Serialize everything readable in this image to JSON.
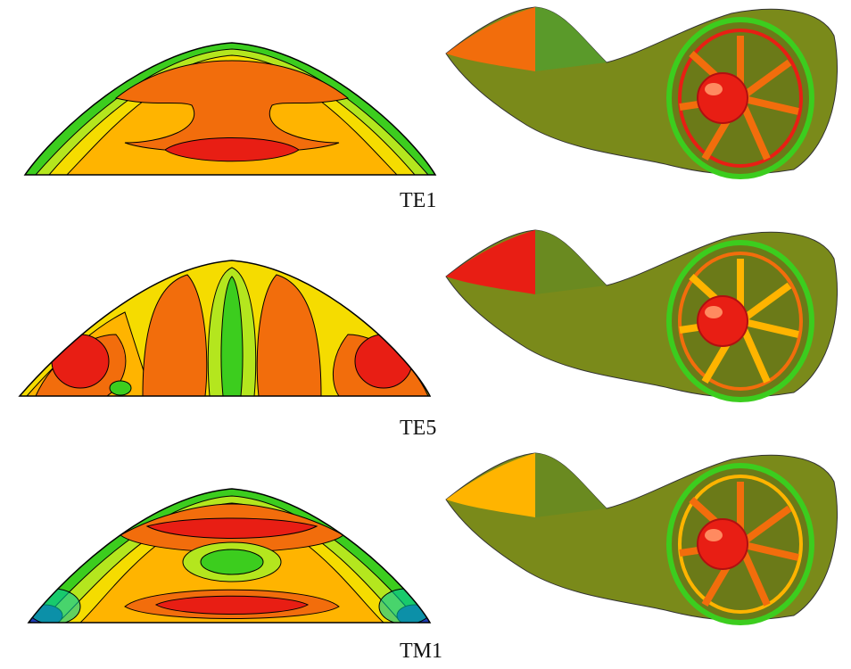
{
  "panels": [
    {
      "label": "TE1"
    },
    {
      "label": "TE5"
    },
    {
      "label": "TM1"
    }
  ],
  "colors": {
    "red": "#e81e14",
    "orange": "#f26d0c",
    "yellow_orange": "#ffb400",
    "yellow": "#f5dc00",
    "yellow_green": "#b4e61e",
    "green": "#3ccd1e",
    "cyan": "#00c8a0",
    "blue": "#1e3cb4",
    "contour": "#000000",
    "duct_base": "#7a8a1a"
  }
}
